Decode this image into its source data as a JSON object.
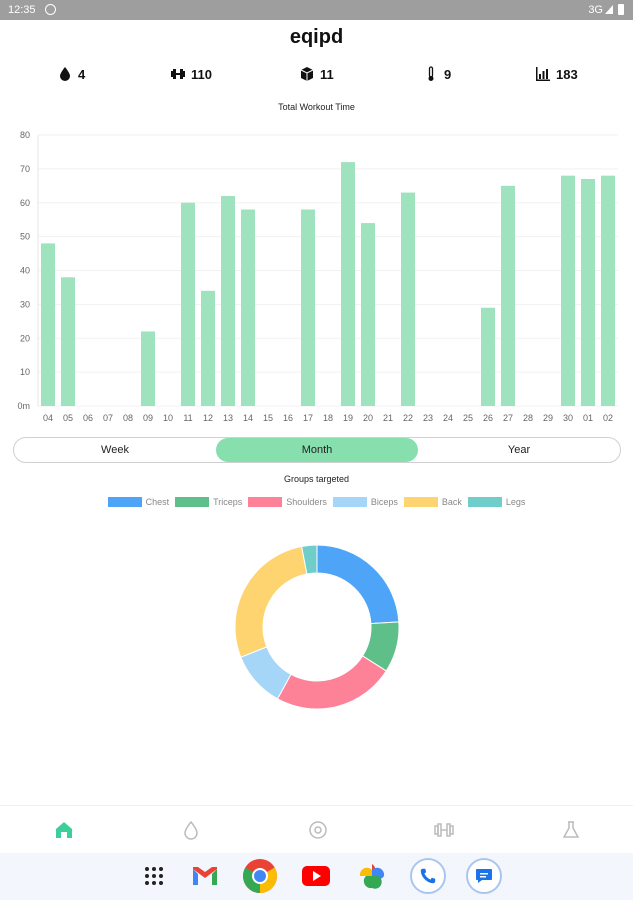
{
  "status_bar": {
    "time": "12:35",
    "network": "3G"
  },
  "app": {
    "title": "eqipd"
  },
  "stats": [
    {
      "icon": "drop-icon",
      "value": "4"
    },
    {
      "icon": "dumbbell-icon",
      "value": "110"
    },
    {
      "icon": "cube-icon",
      "value": "11"
    },
    {
      "icon": "thermometer-icon",
      "value": "9"
    },
    {
      "icon": "bar-chart-icon",
      "value": "183"
    }
  ],
  "chart_data": [
    {
      "type": "bar",
      "title": "Total Workout Time",
      "categories": [
        "04",
        "05",
        "06",
        "07",
        "08",
        "09",
        "10",
        "11",
        "12",
        "13",
        "14",
        "15",
        "16",
        "17",
        "18",
        "19",
        "20",
        "21",
        "22",
        "23",
        "24",
        "25",
        "26",
        "27",
        "28",
        "29",
        "30",
        "01",
        "02"
      ],
      "values": [
        48,
        38,
        0,
        0,
        0,
        22,
        0,
        60,
        34,
        62,
        58,
        0,
        0,
        58,
        0,
        72,
        54,
        0,
        63,
        0,
        0,
        0,
        29,
        65,
        0,
        0,
        68,
        67,
        68
      ],
      "y_tick_labels": [
        "0m",
        "10",
        "20",
        "30",
        "40",
        "50",
        "60",
        "70",
        "80"
      ],
      "ylim": [
        0,
        80
      ],
      "color": "#9ee2be",
      "grid": true
    },
    {
      "type": "pie",
      "title": "Groups targeted",
      "labels": [
        "Chest",
        "Triceps",
        "Shoulders",
        "Biceps",
        "Back",
        "Legs"
      ],
      "values": [
        24,
        10,
        24,
        11,
        28,
        3
      ],
      "colors": [
        "#4ea4f6",
        "#5fbf88",
        "#fd8297",
        "#a6d6f7",
        "#fed471",
        "#6fcdca"
      ],
      "legend_position": "top"
    }
  ],
  "period_tabs": {
    "items": [
      "Week",
      "Month",
      "Year"
    ],
    "selected": "Month"
  },
  "bottom_nav": [
    {
      "icon": "home-icon",
      "active": true
    },
    {
      "icon": "drop-icon",
      "active": false
    },
    {
      "icon": "target-icon",
      "active": false
    },
    {
      "icon": "dumbbell-icon",
      "active": false
    },
    {
      "icon": "flask-icon",
      "active": false
    }
  ],
  "dock": [
    "app-grid-icon",
    "gmail-icon",
    "chrome-icon",
    "youtube-icon",
    "photos-icon",
    "phone-icon",
    "messages-icon"
  ],
  "colors": {
    "accent": "#86dfad",
    "bar": "#9ee2be",
    "nav_active": "#3ccf9a"
  }
}
